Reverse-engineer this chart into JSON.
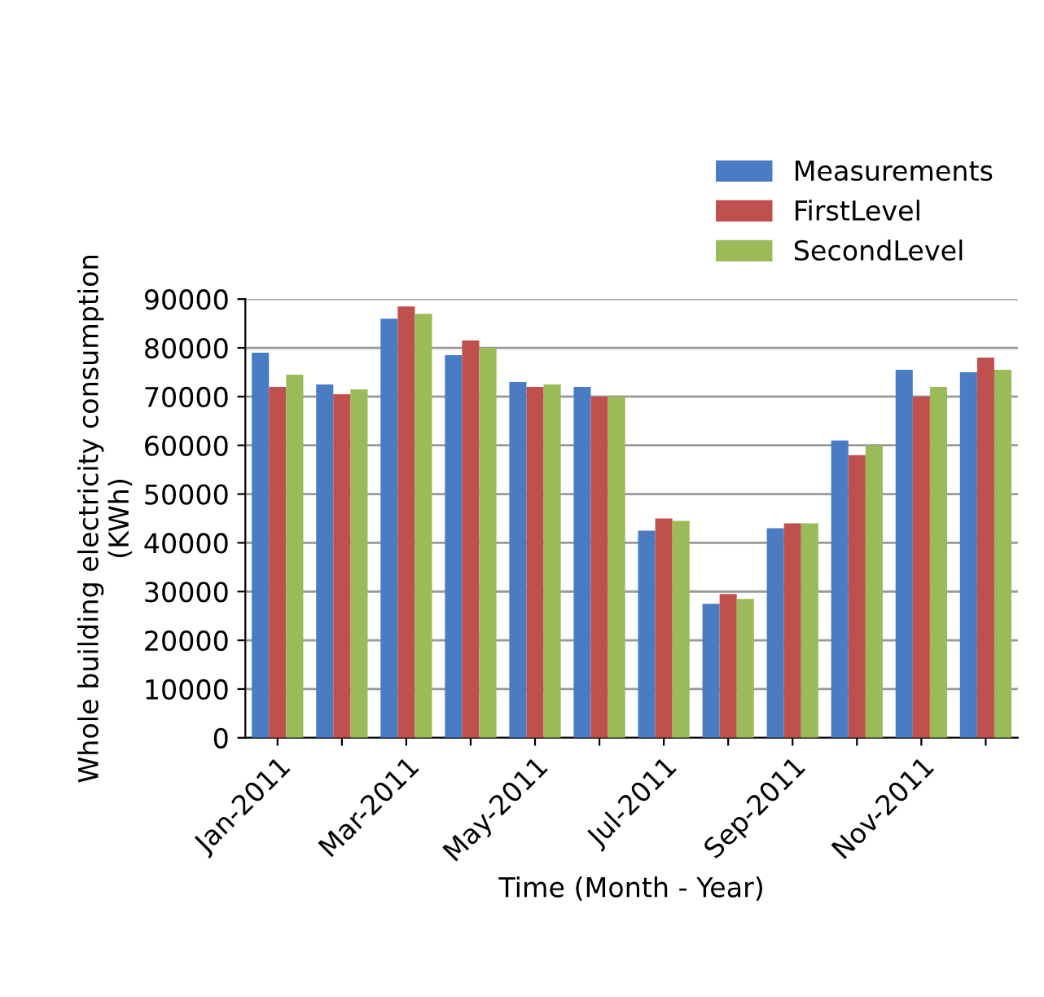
{
  "chart_data": {
    "type": "bar",
    "xlabel": "Time (Month - Year)",
    "ylabel": "Whole building electricity consumption\n(KWh)",
    "categories": [
      "Jan-2011",
      null,
      "Mar-2011",
      null,
      "May-2011",
      null,
      "Jul-2011",
      null,
      "Sep-2011",
      null,
      "Nov-2011",
      null
    ],
    "series": [
      {
        "name": "Measurements",
        "color": "#4a7cc4",
        "values": [
          79000,
          72500,
          86000,
          78500,
          73000,
          72000,
          42500,
          27500,
          43000,
          61000,
          75500,
          75000
        ]
      },
      {
        "name": "FirstLevel",
        "color": "#c0504d",
        "values": [
          72000,
          70500,
          88500,
          81500,
          72000,
          70000,
          45000,
          29500,
          44000,
          58000,
          70000,
          78000
        ]
      },
      {
        "name": "SecondLevel",
        "color": "#9bbb59",
        "values": [
          74500,
          71500,
          87000,
          80000,
          72500,
          70000,
          44500,
          28500,
          44000,
          60000,
          72000,
          75500
        ]
      }
    ],
    "ylim": [
      0,
      90000
    ],
    "yticks": [
      0,
      10000,
      20000,
      30000,
      40000,
      50000,
      60000,
      70000,
      80000,
      90000
    ],
    "grid": "y",
    "legend": "top right"
  }
}
